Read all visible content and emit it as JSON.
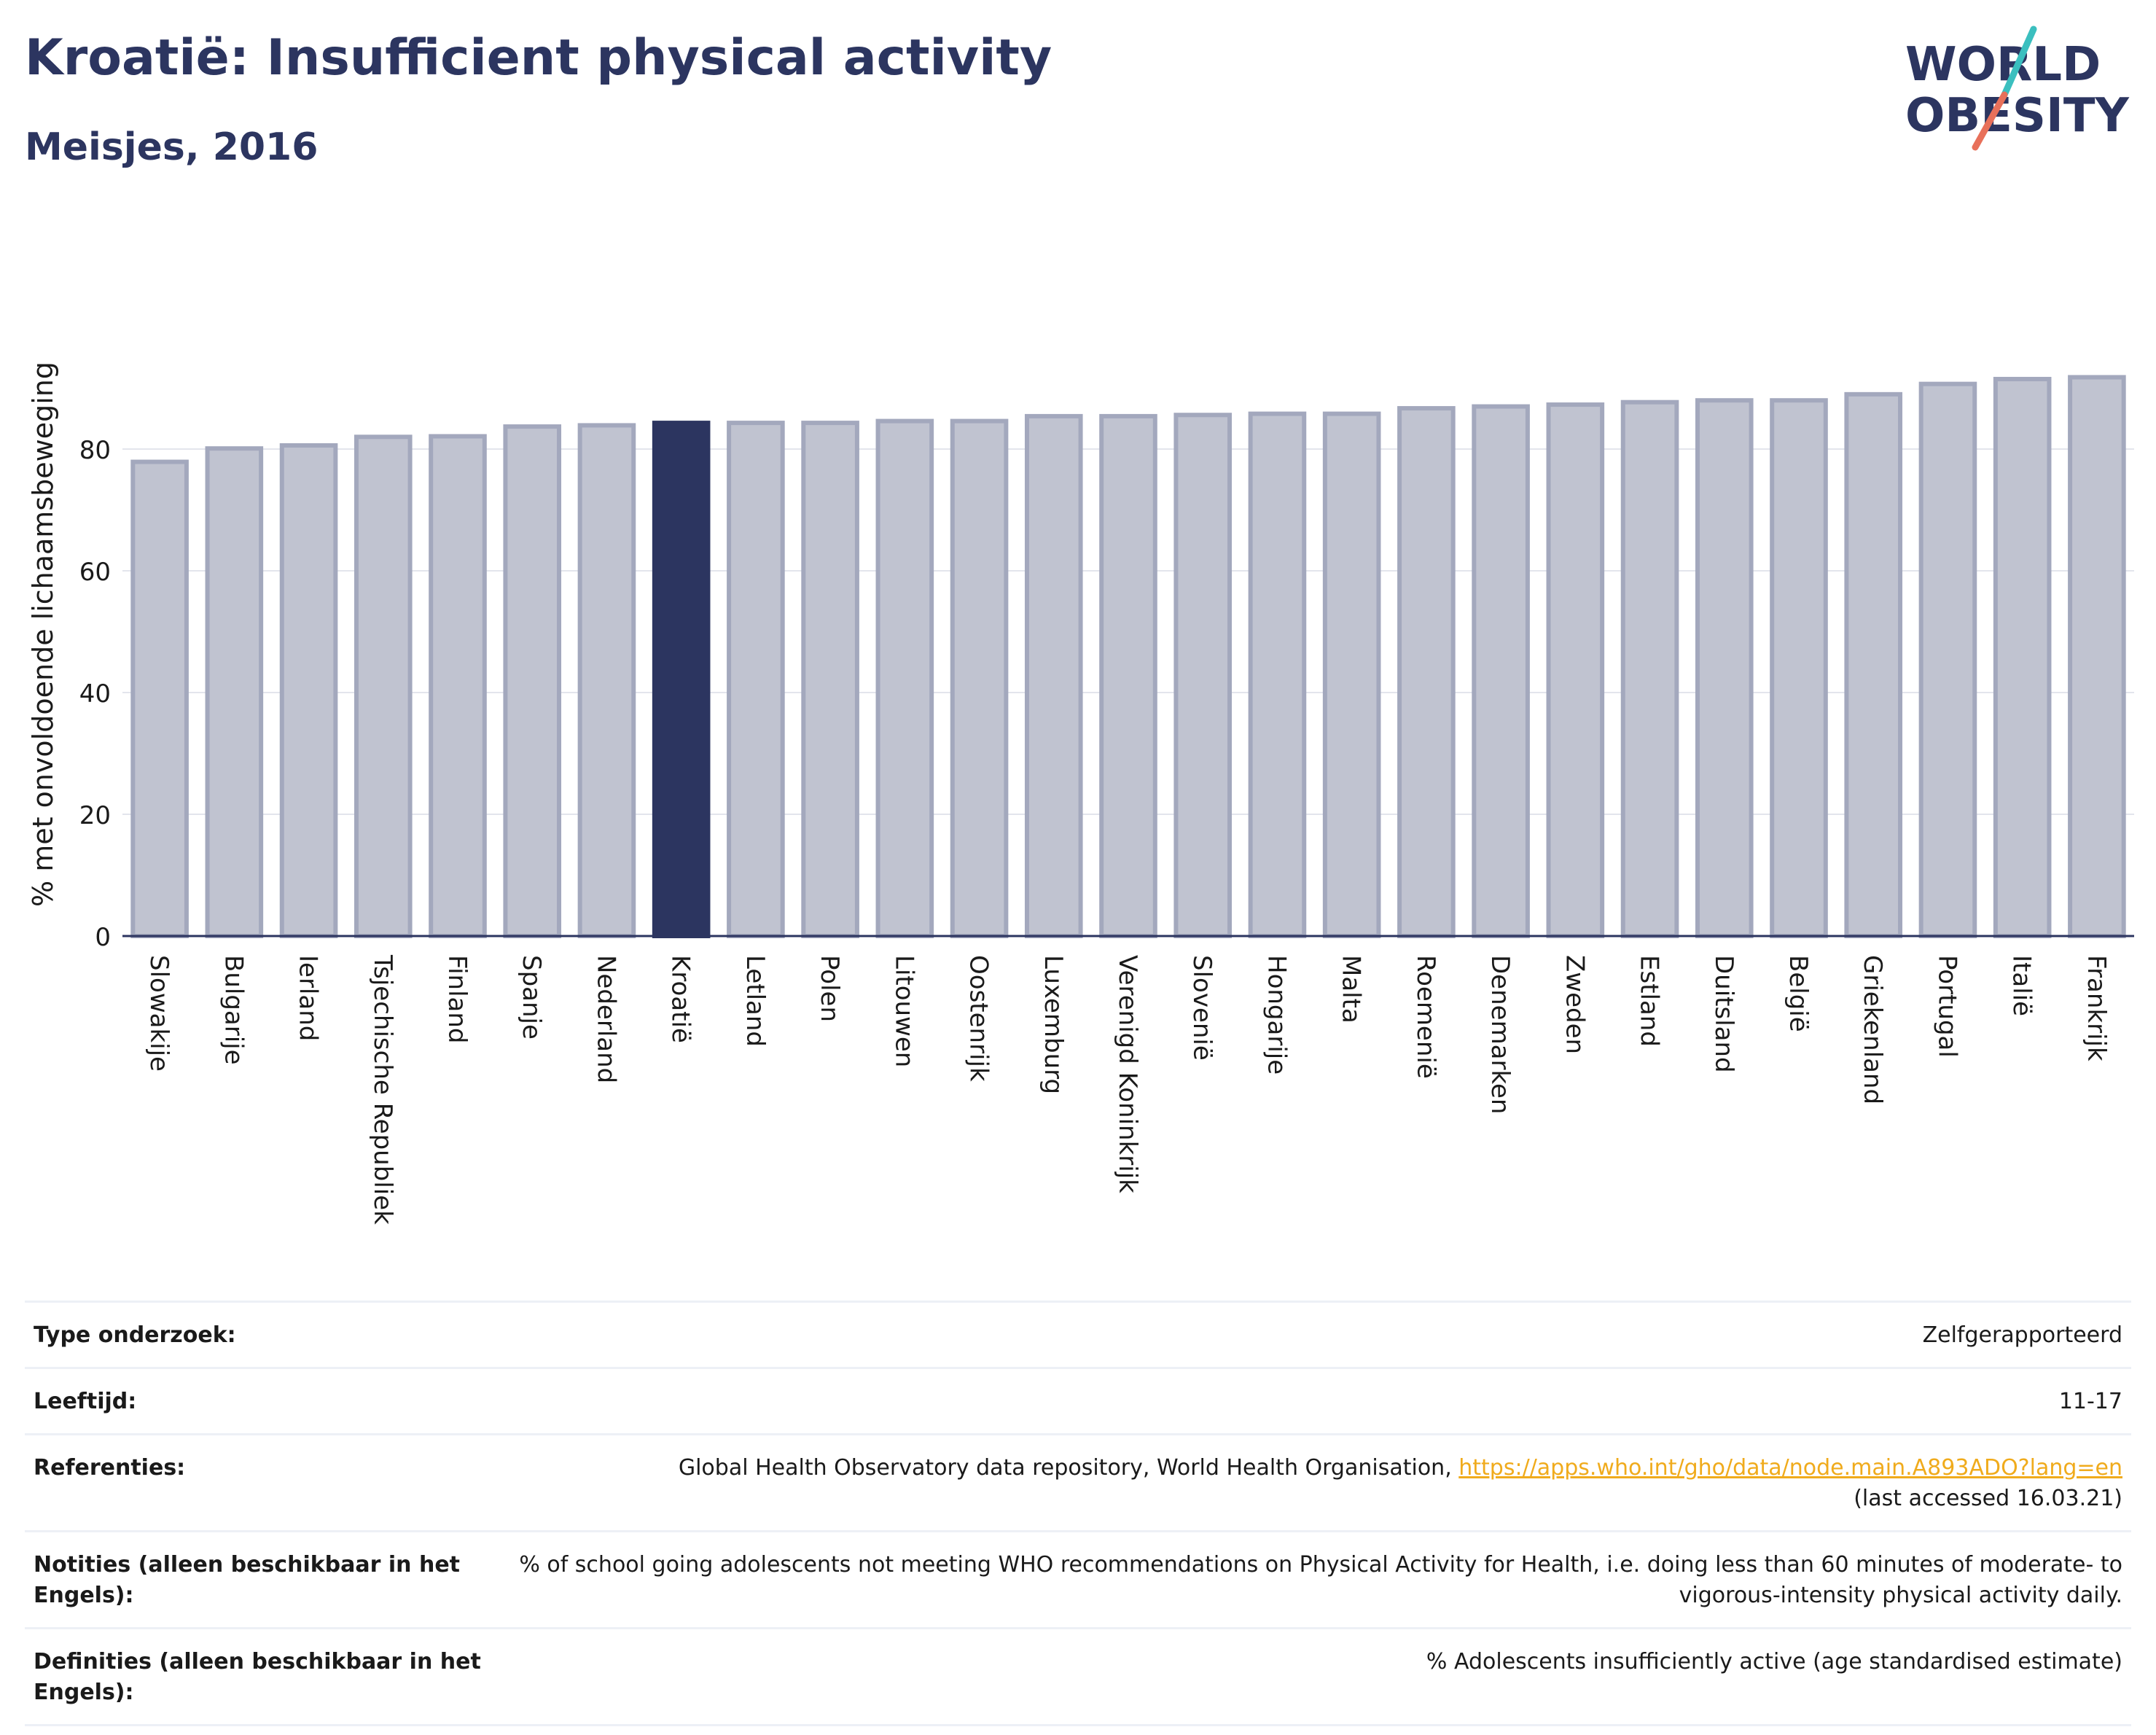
{
  "header": {
    "title": "Kroatië: Insufficient physical activity",
    "subtitle": "Meisjes, 2016"
  },
  "logo": {
    "line1": "WORLD",
    "line2": "OBESITY",
    "colors": {
      "text": "#2c3560",
      "slash_teal": "#3bbfbf",
      "slash_coral": "#e8705a"
    }
  },
  "colors": {
    "bar_default": "#c0c3d0",
    "bar_border": "#a3a8bd",
    "bar_highlight": "#2c3560",
    "axis": "#2c3560",
    "grid": "#e3e5ec"
  },
  "chart_data": {
    "type": "bar",
    "title": "Kroatië: Insufficient physical activity",
    "subtitle": "Meisjes, 2016",
    "ylabel": "% met onvoldoende lichaamsbeweging",
    "xlabel": "",
    "ylim": [
      0,
      95
    ],
    "yticks": [
      0,
      20,
      40,
      60,
      80
    ],
    "grid": true,
    "highlight": "Kroatië",
    "categories": [
      "Slowakije",
      "Bulgarije",
      "Ierland",
      "Tsjechische Republiek",
      "Finland",
      "Spanje",
      "Nederland",
      "Kroatië",
      "Letland",
      "Polen",
      "Litouwen",
      "Oostenrijk",
      "Luxemburg",
      "Verenigd Koninkrijk",
      "Slovenië",
      "Hongarije",
      "Malta",
      "Roemenië",
      "Denemarken",
      "Zweden",
      "Estland",
      "Duitsland",
      "België",
      "Griekenland",
      "Portugal",
      "Italië",
      "Frankrijk"
    ],
    "values": [
      77.9,
      80.1,
      80.6,
      82.0,
      82.1,
      83.7,
      83.9,
      84.3,
      84.3,
      84.3,
      84.6,
      84.6,
      85.4,
      85.4,
      85.6,
      85.8,
      85.8,
      86.7,
      87.0,
      87.3,
      87.7,
      88.0,
      88.0,
      89.0,
      90.7,
      91.5,
      91.8
    ]
  },
  "info_table": [
    {
      "label": "Type onderzoek:",
      "value": "Zelfgerapporteerd"
    },
    {
      "label": "Leeftijd:",
      "value": "11-17"
    },
    {
      "label": "Referenties:",
      "value": "Global Health Observatory data repository, World Health Organisation, ",
      "link": "https://apps.who.int/gho/data/node.main.A893ADO?lang=en",
      "suffix": "(last accessed 16.03.21)"
    },
    {
      "label": "Notities (alleen beschikbaar in het Engels):",
      "value": "% of school going adolescents not meeting WHO recommendations on Physical Activity for Health, i.e. doing less than 60 minutes of moderate- to vigorous-intensity physical activity daily."
    },
    {
      "label": "Definities (alleen beschikbaar in het Engels):",
      "value": "% Adolescents insufficiently active (age standardised estimate)"
    }
  ]
}
